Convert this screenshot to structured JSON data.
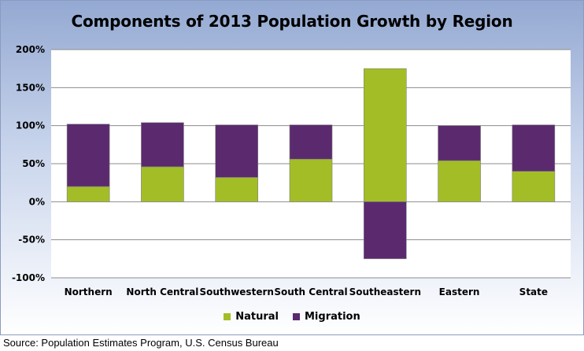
{
  "source_note": "Source:  Population Estimates Program, U.S. Census Bureau",
  "chart_data": {
    "type": "bar",
    "stacked": true,
    "title": "Components of 2013 Population Growth by Region",
    "xlabel": "",
    "ylabel": "",
    "categories": [
      "Northern",
      "North Central",
      "Southwestern",
      "South Central",
      "Southeastern",
      "Eastern",
      "State"
    ],
    "series": [
      {
        "name": "Natural",
        "color": "#a3bd27",
        "values": [
          20,
          46,
          32,
          56,
          175,
          54,
          40
        ]
      },
      {
        "name": "Migration",
        "color": "#5b2a6e",
        "values": [
          82,
          58,
          69,
          45,
          -75,
          46,
          61
        ]
      }
    ],
    "ylim": [
      -100,
      200
    ],
    "yticks": [
      -100,
      -50,
      0,
      50,
      100,
      150,
      200
    ],
    "ytick_labels": [
      "-100%",
      "-50%",
      "0%",
      "50%",
      "100%",
      "150%",
      "200%"
    ],
    "grid": true,
    "legend_position": "bottom"
  }
}
